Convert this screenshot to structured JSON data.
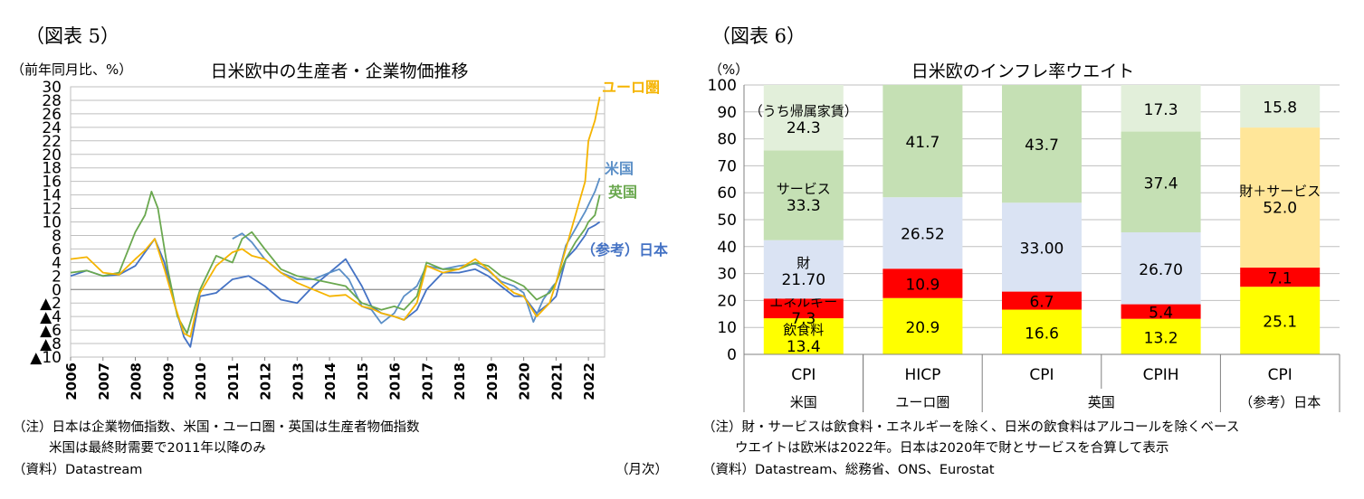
{
  "left": {
    "fig_label": "（図表 5）",
    "title": "日米欧中の生産者・企業物価推移",
    "unit": "（前年同月比、%）",
    "note1": "（注）日本は企業物価指数、米国・ユーロ圏・英国は生産者物価指数",
    "note2": "米国は最終財需要で2011年以降のみ",
    "source": "（資料）Datastream",
    "freq": "（月次）"
  },
  "right": {
    "fig_label": "（図表 6）",
    "title": "日米欧のインフレ率ウエイト",
    "unit": "（%）",
    "note1": "（注）財・サービスは飲食料・エネルギーを除く、日米の飲食料はアルコールを除くベース",
    "note2": "ウエイトは欧米は2022年。日本は2020年で財とサービスを合算して表示",
    "source": "（資料）Datastream、総務省、ONS、Eurostat"
  },
  "colors": {
    "euro": "#f5b400",
    "us": "#5b8fc7",
    "uk": "#6aa84f",
    "japan": "#4472c4",
    "food": "#ffff00",
    "energy": "#ff0000",
    "goods": "#dae3f3",
    "services": "#c5e0b4",
    "rent": "#e2efda",
    "goods_services": "#ffe699"
  },
  "chart_data": [
    {
      "type": "line",
      "title": "日米欧中の生産者・企業物価推移",
      "ylabel": "（前年同月比、%）",
      "xlabel": "（月次）",
      "ylim": [
        -10,
        30
      ],
      "yticks": [
        -10,
        -8,
        -6,
        -4,
        -2,
        0,
        2,
        4,
        6,
        8,
        10,
        12,
        14,
        16,
        18,
        20,
        22,
        24,
        26,
        28,
        30
      ],
      "ytick_labels": [
        "▲10",
        "▲8",
        "▲6",
        "▲4",
        "▲2",
        "0",
        "2",
        "4",
        "6",
        "8",
        "10",
        "12",
        "14",
        "16",
        "18",
        "20",
        "22",
        "24",
        "26",
        "28",
        "30"
      ],
      "xlim": [
        2006,
        2022.5
      ],
      "xticks": [
        "2006",
        "2007",
        "2008",
        "2009",
        "2010",
        "2011",
        "2012",
        "2013",
        "2014",
        "2015",
        "2016",
        "2017",
        "2018",
        "2019",
        "2020",
        "2021",
        "2022"
      ],
      "grid": true,
      "series": [
        {
          "name": "ユーロ圏",
          "color_key": "euro",
          "x": [
            2006,
            2006.5,
            2007,
            2007.5,
            2008,
            2008.3,
            2008.6,
            2008.9,
            2009.2,
            2009.5,
            2009.7,
            2010,
            2010.5,
            2011,
            2011.3,
            2011.6,
            2012,
            2012.5,
            2013,
            2013.5,
            2014,
            2014.5,
            2015,
            2015.3,
            2015.6,
            2016,
            2016.3,
            2016.7,
            2017,
            2017.5,
            2018,
            2018.5,
            2018.9,
            2019.3,
            2019.7,
            2020,
            2020.4,
            2020.8,
            2021,
            2021.3,
            2021.6,
            2021.9,
            2022,
            2022.2,
            2022.35
          ],
          "y": [
            4.5,
            4.8,
            2.5,
            2.2,
            4.5,
            5.8,
            7.5,
            3,
            -2,
            -6.5,
            -7,
            -0.5,
            3.5,
            5.5,
            6,
            5,
            4.5,
            2.5,
            1,
            0,
            -1,
            -0.8,
            -2.5,
            -2.8,
            -3.5,
            -4,
            -4.5,
            -2,
            3.5,
            2.5,
            3,
            4.5,
            3,
            1,
            -0.5,
            -1,
            -4,
            -2,
            1,
            6,
            11,
            16,
            22,
            25,
            28.5
          ]
        },
        {
          "name": "米国",
          "color_key": "us",
          "x": [
            2011,
            2011.3,
            2011.6,
            2012,
            2012.5,
            2013,
            2013.5,
            2014,
            2014.3,
            2014.6,
            2015,
            2015.3,
            2015.6,
            2016,
            2016.3,
            2016.7,
            2017,
            2017.5,
            2018,
            2018.5,
            2018.9,
            2019.3,
            2019.7,
            2020,
            2020.3,
            2020.6,
            2020.9,
            2021,
            2021.3,
            2021.6,
            2021.9,
            2022,
            2022.2,
            2022.35
          ],
          "y": [
            7.5,
            8.3,
            7,
            4.5,
            2.5,
            1.5,
            1.5,
            2.5,
            3,
            1.5,
            -2.5,
            -3,
            -5,
            -3.5,
            -1,
            0.5,
            3.5,
            3,
            3.5,
            3.8,
            2.8,
            1.2,
            0.5,
            -0.5,
            -4.8,
            -1.5,
            0.5,
            1,
            6.5,
            9,
            11.5,
            12.5,
            14.5,
            16.5
          ]
        },
        {
          "name": "英国",
          "color_key": "uk",
          "x": [
            2006,
            2006.5,
            2007,
            2007.5,
            2008,
            2008.3,
            2008.5,
            2008.7,
            2009,
            2009.3,
            2009.6,
            2010,
            2010.5,
            2011,
            2011.3,
            2011.6,
            2012,
            2012.5,
            2013,
            2013.5,
            2014,
            2014.5,
            2015,
            2015.3,
            2015.6,
            2016,
            2016.3,
            2016.7,
            2017,
            2017.5,
            2018,
            2018.5,
            2018.9,
            2019.3,
            2019.7,
            2020,
            2020.4,
            2020.8,
            2021,
            2021.3,
            2021.6,
            2021.9,
            2022,
            2022.2,
            2022.35
          ],
          "y": [
            2.5,
            2.8,
            2,
            2.5,
            8.5,
            11,
            14.5,
            12,
            3,
            -4,
            -6.5,
            0,
            5,
            4,
            7.5,
            8.5,
            6,
            3,
            2,
            1.5,
            1,
            0.5,
            -2,
            -2.5,
            -3,
            -2.5,
            -3,
            -1,
            4,
            3,
            3,
            4,
            3.5,
            2,
            1.2,
            0.5,
            -1.5,
            -0.5,
            1,
            4.5,
            7,
            9,
            10,
            11,
            14
          ]
        },
        {
          "name": "（参考）日本",
          "color_key": "japan",
          "x": [
            2006,
            2006.5,
            2007,
            2007.5,
            2008,
            2008.3,
            2008.6,
            2008.9,
            2009.2,
            2009.5,
            2009.7,
            2010,
            2010.5,
            2011,
            2011.5,
            2012,
            2012.5,
            2013,
            2013.5,
            2014,
            2014.5,
            2015,
            2015.3,
            2015.6,
            2016,
            2016.3,
            2016.7,
            2017,
            2017.5,
            2018,
            2018.5,
            2018.9,
            2019.3,
            2019.7,
            2020,
            2020.4,
            2020.8,
            2021,
            2021.3,
            2021.6,
            2021.9,
            2022,
            2022.2,
            2022.35
          ],
          "y": [
            2,
            2.8,
            2,
            2.2,
            3.5,
            5.5,
            7.5,
            4,
            -2,
            -7,
            -8.5,
            -1,
            -0.5,
            1.5,
            2,
            0.5,
            -1.5,
            -2,
            0.5,
            2.5,
            4.5,
            0.5,
            -2.5,
            -3.5,
            -4,
            -4.5,
            -3,
            0,
            2.5,
            2.5,
            3,
            2,
            0.5,
            -1,
            -1,
            -3.5,
            -2,
            -1,
            4.5,
            6,
            8,
            9,
            9.5,
            10
          ]
        }
      ],
      "annotations": [
        "ユーロ圏",
        "米国",
        "英国",
        "（参考）日本"
      ]
    },
    {
      "type": "bar",
      "stacked": true,
      "title": "日米欧のインフレ率ウエイト",
      "ylabel": "（%）",
      "ylim": [
        0,
        100
      ],
      "yticks": [
        0,
        10,
        20,
        30,
        40,
        50,
        60,
        70,
        80,
        90,
        100
      ],
      "grid": true,
      "categories": [
        "CPI",
        "HICP",
        "CPI",
        "CPIH",
        "CPI"
      ],
      "groups": [
        {
          "label": "米国",
          "span": 1
        },
        {
          "label": "ユーロ圏",
          "span": 1
        },
        {
          "label": "英国",
          "span": 2
        },
        {
          "label": "（参考）日本",
          "span": 1
        }
      ],
      "bars": [
        {
          "segments": [
            {
              "name": "飲食料",
              "value": 13.4,
              "color_key": "food",
              "label": "13.4",
              "caption": "飲食料"
            },
            {
              "name": "エネルギー",
              "value": 7.3,
              "color_key": "energy",
              "label": "7.3",
              "caption": "エネルギー"
            },
            {
              "name": "財",
              "value": 21.7,
              "color_key": "goods",
              "label": "21.70",
              "caption": "財"
            },
            {
              "name": "サービス",
              "value": 33.3,
              "color_key": "services",
              "label": "33.3",
              "caption": "サービス"
            },
            {
              "name": "うち帰属家賃",
              "value": 24.3,
              "color_key": "rent",
              "label": "24.3",
              "caption": "（うち帰属家賃）"
            }
          ]
        },
        {
          "segments": [
            {
              "name": "飲食料",
              "value": 20.9,
              "color_key": "food",
              "label": "20.9"
            },
            {
              "name": "エネルギー",
              "value": 10.9,
              "color_key": "energy",
              "label": "10.9"
            },
            {
              "name": "財",
              "value": 26.52,
              "color_key": "goods",
              "label": "26.52"
            },
            {
              "name": "サービス",
              "value": 41.7,
              "color_key": "services",
              "label": "41.7"
            }
          ]
        },
        {
          "segments": [
            {
              "name": "飲食料",
              "value": 16.6,
              "color_key": "food",
              "label": "16.6"
            },
            {
              "name": "エネルギー",
              "value": 6.7,
              "color_key": "energy",
              "label": "6.7"
            },
            {
              "name": "財",
              "value": 33.0,
              "color_key": "goods",
              "label": "33.00"
            },
            {
              "name": "サービス",
              "value": 43.7,
              "color_key": "services",
              "label": "43.7"
            }
          ]
        },
        {
          "segments": [
            {
              "name": "飲食料",
              "value": 13.2,
              "color_key": "food",
              "label": "13.2"
            },
            {
              "name": "エネルギー",
              "value": 5.4,
              "color_key": "energy",
              "label": "5.4"
            },
            {
              "name": "財",
              "value": 26.7,
              "color_key": "goods",
              "label": "26.70"
            },
            {
              "name": "サービス",
              "value": 37.4,
              "color_key": "services",
              "label": "37.4"
            },
            {
              "name": "うち帰属家賃",
              "value": 17.3,
              "color_key": "rent",
              "label": "17.3"
            }
          ]
        },
        {
          "segments": [
            {
              "name": "飲食料",
              "value": 25.1,
              "color_key": "food",
              "label": "25.1"
            },
            {
              "name": "エネルギー",
              "value": 7.1,
              "color_key": "energy",
              "label": "7.1"
            },
            {
              "name": "財＋サービス",
              "value": 52.0,
              "color_key": "goods_services",
              "label": "52.0",
              "caption": "財＋サービス"
            },
            {
              "name": "うち帰属家賃",
              "value": 15.8,
              "color_key": "rent",
              "label": "15.8"
            }
          ]
        }
      ]
    }
  ]
}
